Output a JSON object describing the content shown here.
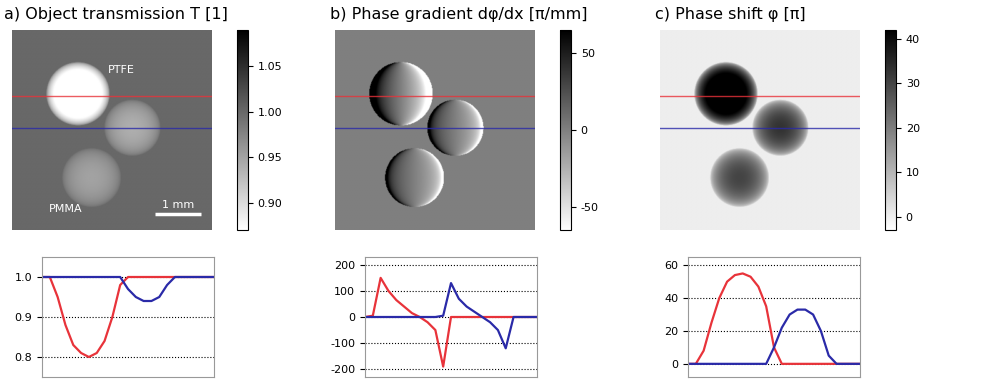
{
  "chart_data": [
    {
      "type": "image",
      "title": "a) Object transmission T [1]",
      "xlim": [
        0,
        4.4
      ],
      "ylim": [
        4.4,
        0
      ],
      "tick_labels": false,
      "background": 1.0,
      "objects": [
        {
          "label": "PTFE",
          "center": [
            1.45,
            1.4
          ],
          "radius": 0.7,
          "value": 0.8
        },
        {
          "label": null,
          "center": [
            2.65,
            2.15
          ],
          "radius": 0.62,
          "value": 0.94
        },
        {
          "label": "PMMA",
          "center": [
            1.75,
            3.25
          ],
          "radius": 0.65,
          "value": 0.95
        }
      ],
      "colorbar": {
        "range": [
          0.87,
          1.09
        ],
        "ticks": [
          {
            "value": 0.9,
            "label": "0.90"
          },
          0.95,
          {
            "value": 1.0,
            "label": "1.00"
          },
          1.05
        ]
      },
      "profile_lines": [
        {
          "y": 1.45,
          "color": "#e8333a"
        },
        {
          "y": 2.15,
          "color": "#2a2aa8"
        }
      ],
      "scale_bar": {
        "length": 1,
        "label": "1 mm"
      }
    },
    {
      "type": "line",
      "xlim": [
        0,
        4.4
      ],
      "ylim": [
        0.75,
        1.05
      ],
      "yticks": [
        0.8,
        0.9,
        1.0
      ],
      "grid": true,
      "tick_labels": "y",
      "x": [
        0,
        0.2,
        0.4,
        0.6,
        0.8,
        1.0,
        1.2,
        1.4,
        1.6,
        1.8,
        2.0,
        2.2,
        2.4,
        2.6,
        2.8,
        3.0,
        3.2,
        3.4,
        3.6,
        3.8,
        4.0,
        4.2,
        4.4
      ],
      "series": [
        {
          "color": "#e8333a",
          "values": [
            1.0,
            1.0,
            0.95,
            0.88,
            0.83,
            0.81,
            0.8,
            0.81,
            0.84,
            0.9,
            0.98,
            1.0,
            1.0,
            1.0,
            1.0,
            1.0,
            1.0,
            1.0,
            1.0,
            1.0,
            1.0,
            1.0,
            1.0
          ]
        },
        {
          "color": "#2a2aa8",
          "values": [
            1.0,
            1.0,
            1.0,
            1.0,
            1.0,
            1.0,
            1.0,
            1.0,
            1.0,
            1.0,
            1.0,
            0.97,
            0.95,
            0.94,
            0.94,
            0.95,
            0.98,
            1.0,
            1.0,
            1.0,
            1.0,
            1.0,
            1.0
          ]
        }
      ]
    },
    {
      "type": "gradient",
      "title": "b) Phase gradient dφ/dx [π/mm]",
      "xlim": [
        0,
        4.4
      ],
      "ylim": [
        4.4,
        0
      ],
      "tick_labels": false,
      "background": 0,
      "objects": [
        {
          "label": null,
          "center": [
            1.45,
            1.4
          ],
          "radius": 0.7,
          "value": 50
        },
        {
          "label": null,
          "center": [
            2.65,
            2.15
          ],
          "radius": 0.62,
          "value": 30
        },
        {
          "label": null,
          "center": [
            1.75,
            3.25
          ],
          "radius": 0.65,
          "value": 28
        }
      ],
      "colorbar": {
        "range": [
          -65,
          65
        ],
        "ticks": [
          -50,
          0,
          50
        ]
      },
      "profile_lines": [
        {
          "y": 1.45,
          "color": "#e8333a"
        },
        {
          "y": 2.15,
          "color": "#2a2aa8"
        }
      ]
    },
    {
      "type": "line",
      "xlim": [
        0,
        4.4
      ],
      "ylim": [
        -230,
        230
      ],
      "yticks": [
        -200,
        -100,
        0,
        100,
        200
      ],
      "grid": true,
      "tick_labels": "y",
      "x": [
        0,
        0.2,
        0.4,
        0.6,
        0.8,
        1.0,
        1.2,
        1.4,
        1.6,
        1.8,
        2.0,
        2.2,
        2.4,
        2.6,
        2.8,
        3.0,
        3.2,
        3.4,
        3.6,
        3.8,
        4.0,
        4.2,
        4.4
      ],
      "series": [
        {
          "color": "#e8333a",
          "values": [
            0,
            5,
            150,
            100,
            65,
            40,
            15,
            0,
            -20,
            -50,
            -190,
            0,
            0,
            0,
            0,
            0,
            0,
            0,
            0,
            0,
            0,
            0,
            0
          ]
        },
        {
          "color": "#2a2aa8",
          "values": [
            0,
            0,
            0,
            0,
            0,
            0,
            0,
            0,
            0,
            0,
            5,
            130,
            70,
            40,
            20,
            0,
            -20,
            -50,
            -120,
            0,
            0,
            0,
            0
          ]
        }
      ]
    },
    {
      "type": "image",
      "title": "c) Phase shift φ [π]",
      "xlim": [
        0,
        4.4
      ],
      "ylim": [
        4.4,
        0
      ],
      "tick_labels": false,
      "background": 0,
      "objects": [
        {
          "label": null,
          "center": [
            1.45,
            1.4
          ],
          "radius": 0.7,
          "value": 55
        },
        {
          "label": null,
          "center": [
            2.65,
            2.15
          ],
          "radius": 0.62,
          "value": 33
        },
        {
          "label": null,
          "center": [
            1.75,
            3.25
          ],
          "radius": 0.65,
          "value": 30
        }
      ],
      "colorbar": {
        "range": [
          -3,
          42
        ],
        "ticks": [
          0,
          10,
          20,
          30,
          40
        ]
      },
      "profile_lines": [
        {
          "y": 1.45,
          "color": "#e8333a"
        },
        {
          "y": 2.15,
          "color": "#2a2aa8"
        }
      ]
    },
    {
      "type": "line",
      "xlim": [
        0,
        4.4
      ],
      "ylim": [
        -8,
        65
      ],
      "yticks": [
        0,
        20,
        40,
        60
      ],
      "grid": true,
      "tick_labels": "y",
      "x": [
        0,
        0.2,
        0.4,
        0.6,
        0.8,
        1.0,
        1.2,
        1.4,
        1.6,
        1.8,
        2.0,
        2.2,
        2.4,
        2.6,
        2.8,
        3.0,
        3.2,
        3.4,
        3.6,
        3.8,
        4.0,
        4.2,
        4.4
      ],
      "series": [
        {
          "color": "#e8333a",
          "values": [
            0,
            0,
            8,
            25,
            40,
            50,
            54,
            55,
            53,
            47,
            35,
            10,
            0,
            0,
            0,
            0,
            0,
            0,
            0,
            0,
            0,
            0,
            0
          ]
        },
        {
          "color": "#2a2aa8",
          "values": [
            0,
            0,
            0,
            0,
            0,
            0,
            0,
            0,
            0,
            0,
            0,
            10,
            22,
            30,
            33,
            33,
            30,
            20,
            5,
            0,
            0,
            0,
            0
          ]
        }
      ]
    }
  ]
}
